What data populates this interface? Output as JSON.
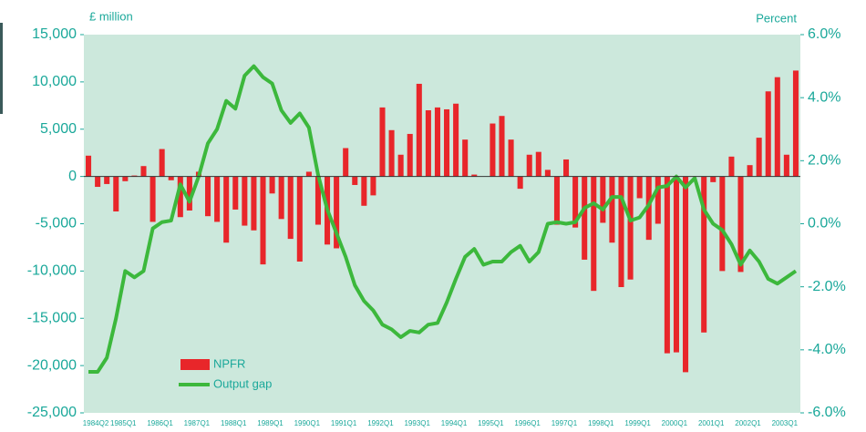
{
  "chart_data": {
    "type": "bar_line",
    "y_label": "£ million",
    "y2_label": "Percent",
    "categories": [
      "1984Q2",
      null,
      null,
      "1985Q1",
      null,
      null,
      null,
      "1986Q1",
      null,
      null,
      null,
      "1987Q1",
      null,
      null,
      null,
      "1988Q1",
      null,
      null,
      null,
      "1989Q1",
      null,
      null,
      null,
      "1990Q1",
      null,
      null,
      null,
      "1991Q1",
      null,
      null,
      null,
      "1992Q1",
      null,
      null,
      null,
      "1993Q1",
      null,
      null,
      null,
      "1994Q1",
      null,
      null,
      null,
      "1995Q1",
      null,
      null,
      null,
      "1996Q1",
      null,
      null,
      null,
      "1997Q1",
      null,
      null,
      null,
      "1998Q1",
      null,
      null,
      null,
      "1999Q1",
      null,
      null,
      null,
      "2000Q1",
      null,
      null,
      null,
      "2001Q1",
      null,
      null,
      null,
      "2002Q1",
      null,
      null,
      null,
      "2003Q1",
      null,
      null
    ],
    "series": [
      {
        "name": "NPFR",
        "type": "bar",
        "color": "#e8262a",
        "values": [
          2200,
          -1100,
          -800,
          -3700,
          -500,
          100,
          1100,
          -4800,
          2900,
          -400,
          -4300,
          -3600,
          500,
          -4200,
          -4800,
          -7000,
          -3500,
          -5200,
          -5700,
          -9300,
          -1800,
          -4500,
          -6600,
          -9000,
          500,
          -5100,
          -7200,
          -7600,
          3000,
          -900,
          -3100,
          -2000,
          7300,
          4900,
          2300,
          4500,
          9800,
          7000,
          7300,
          7100,
          7700,
          3900,
          200,
          0,
          5600,
          6400,
          3900,
          -1300,
          2300,
          2600,
          700,
          -5100,
          1800,
          -5400,
          -8800,
          -12100,
          -4900,
          -7000,
          -11700,
          -10900,
          -2300,
          -6700,
          -5000,
          -18700,
          -18600,
          -20700,
          0,
          -16500,
          -600,
          -10000,
          2100,
          -10100,
          1200,
          4100,
          9000,
          10500,
          2300,
          11200
        ]
      },
      {
        "name": "Output gap",
        "type": "line",
        "axis": "y2",
        "color": "#3cb83c",
        "values": [
          -4.7,
          -4.7,
          -4.25,
          -3.0,
          -1.5,
          -1.7,
          -1.5,
          -0.15,
          0.05,
          0.1,
          1.25,
          0.7,
          1.5,
          2.55,
          3.0,
          3.9,
          3.65,
          4.7,
          5.0,
          4.65,
          4.45,
          3.6,
          3.2,
          3.5,
          3.05,
          1.55,
          0.45,
          -0.3,
          -1.05,
          -1.95,
          -2.45,
          -2.75,
          -3.2,
          -3.35,
          -3.6,
          -3.4,
          -3.45,
          -3.2,
          -3.15,
          -2.5,
          -1.75,
          -1.05,
          -0.8,
          -1.3,
          -1.2,
          -1.2,
          -0.9,
          -0.7,
          -1.2,
          -0.9,
          0.0,
          0.05,
          0.0,
          0.05,
          0.5,
          0.65,
          0.45,
          0.85,
          0.85,
          0.1,
          0.2,
          0.6,
          1.15,
          1.2,
          1.5,
          1.15,
          1.45,
          0.45,
          0.0,
          -0.2,
          -0.65,
          -1.3,
          -0.85,
          -1.2,
          -1.75,
          -1.9,
          -1.7,
          -1.5
        ]
      }
    ],
    "ylim": [
      -25000,
      15000
    ],
    "yticks": [
      {
        "value": -25000,
        "label": "-25,000"
      },
      {
        "value": -20000,
        "label": "-20,000"
      },
      {
        "value": -15000,
        "label": "-15,000"
      },
      {
        "value": -10000,
        "label": "-10,000"
      },
      {
        "value": -5000,
        "label": "-5,000"
      },
      0,
      {
        "value": 5000,
        "label": "5,000"
      },
      {
        "value": 10000,
        "label": "10,000"
      },
      {
        "value": 15000,
        "label": "15,000"
      }
    ],
    "y2lim": [
      -6,
      6
    ],
    "y2ticks": [
      {
        "value": -6,
        "label": "-6.0%"
      },
      {
        "value": -4,
        "label": "-4.0%"
      },
      {
        "value": -2,
        "label": "-2.0%"
      },
      {
        "value": 0,
        "label": "0.0%"
      },
      {
        "value": 2,
        "label": "2.0%"
      },
      {
        "value": 4,
        "label": "4.0%"
      },
      {
        "value": 6,
        "label": "6.0%"
      }
    ],
    "background": "#cce8dc"
  }
}
